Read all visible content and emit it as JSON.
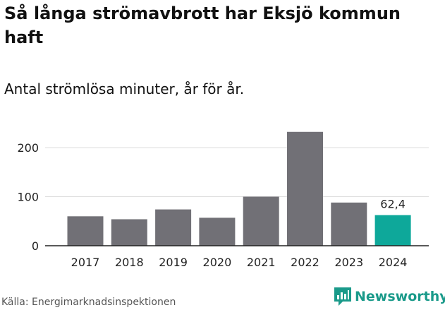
{
  "title": "Så långa strömavbrott har Eksjö kommun haft",
  "subtitle": "Antal strömlösa minuter, år för år.",
  "source": "Källa: Energimarknadsinspektionen",
  "brand": "Newsworthy",
  "colors": {
    "bar": "#717076",
    "highlight": "#0ea89a",
    "grid": "#dddddd",
    "brand": "#1a9a8a"
  },
  "chart_data": {
    "type": "bar",
    "title": "Så långa strömavbrott har Eksjö kommun haft",
    "ylabel": "Antal strömlösa minuter",
    "categories": [
      "2017",
      "2018",
      "2019",
      "2020",
      "2021",
      "2022",
      "2023",
      "2024"
    ],
    "values": [
      60,
      54,
      74,
      57,
      100,
      232,
      88,
      62.4
    ],
    "ylim": [
      0,
      250
    ],
    "yticks": [
      0,
      100,
      200
    ],
    "highlight_index": 7,
    "data_labels": [
      {
        "index": 7,
        "text": "62,4"
      }
    ]
  }
}
